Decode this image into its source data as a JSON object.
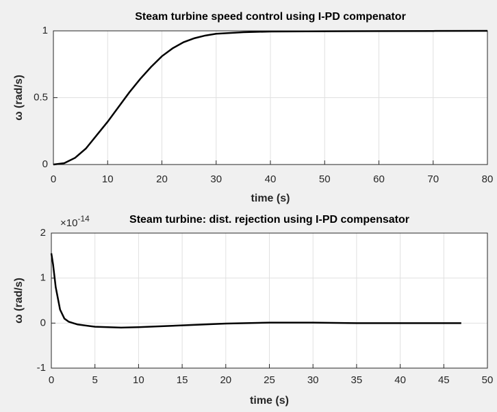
{
  "chart_data": [
    {
      "type": "line",
      "title": "Steam turbine speed control using I-PD compenator",
      "xlabel": "time (s)",
      "ylabel": "ω (rad/s)",
      "x": [
        0,
        2,
        4,
        6,
        8,
        10,
        12,
        14,
        16,
        18,
        20,
        22,
        24,
        26,
        28,
        30,
        35,
        40,
        50,
        60,
        70,
        80
      ],
      "values": [
        0,
        0.01,
        0.05,
        0.12,
        0.22,
        0.32,
        0.43,
        0.54,
        0.64,
        0.73,
        0.81,
        0.87,
        0.915,
        0.945,
        0.965,
        0.978,
        0.99,
        0.995,
        0.997,
        0.998,
        0.999,
        1.0
      ],
      "color": "#000000",
      "xlim": [
        0,
        80
      ],
      "xticks": [
        0,
        10,
        20,
        30,
        40,
        50,
        60,
        70,
        80
      ],
      "ylim": [
        0,
        1
      ],
      "yticks": [
        0,
        0.5,
        1
      ],
      "grid": true
    },
    {
      "type": "line",
      "title": "Steam turbine: dist. rejection using I-PD compensator",
      "xlabel": "time (s)",
      "ylabel": "ω (rad/s)",
      "y_multiplier": "×10",
      "y_exponent": "-14",
      "x": [
        0,
        0.2,
        0.5,
        1,
        1.5,
        2,
        3,
        5,
        8,
        10,
        15,
        20,
        25,
        30,
        35,
        40,
        47
      ],
      "values": [
        1.55,
        1.3,
        0.8,
        0.3,
        0.1,
        0.03,
        -0.03,
        -0.08,
        -0.1,
        -0.09,
        -0.05,
        -0.01,
        0.01,
        0.01,
        0,
        0,
        0
      ],
      "color": "#000000",
      "xlim": [
        0,
        50
      ],
      "xticks": [
        0,
        5,
        10,
        15,
        20,
        25,
        30,
        35,
        40,
        45,
        50
      ],
      "ylim": [
        -1,
        2
      ],
      "yticks": [
        -1,
        0,
        1,
        2
      ],
      "grid": true
    }
  ]
}
